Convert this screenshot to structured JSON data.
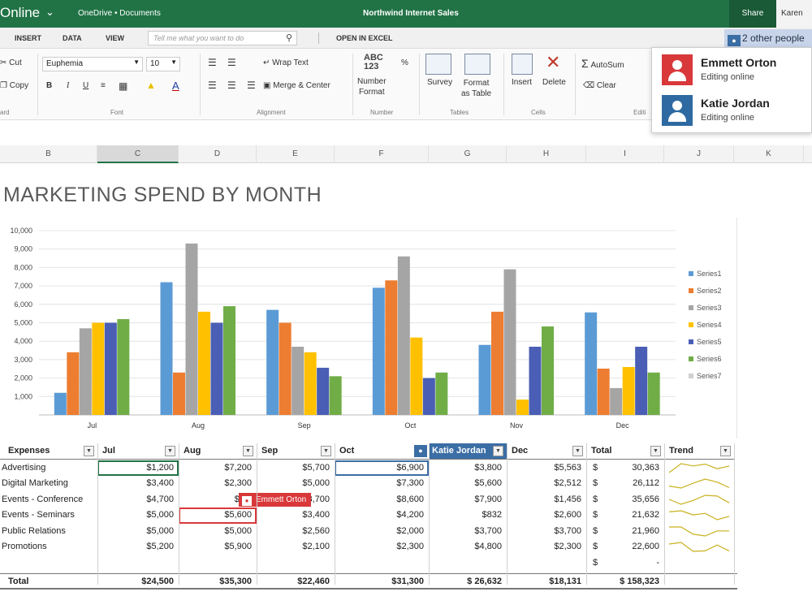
{
  "titlebar": {
    "app": "Online",
    "breadcrumb": "OneDrive • Documents",
    "document": "Northwind Internet Sales",
    "share": "Share",
    "user": "Karen"
  },
  "tabs": [
    "INSERT",
    "DATA",
    "VIEW"
  ],
  "tell_me_placeholder": "Tell me what you want to do",
  "open_in_excel": "OPEN IN EXCEL",
  "other_people": "2 other people",
  "ribbon": {
    "cut": "Cut",
    "copy": "Copy",
    "clipboard_group": "ard",
    "font_name": "Euphemia",
    "font_size": "10",
    "font_group": "Font",
    "wrap_text": "Wrap Text",
    "merge_center": "Merge & Center",
    "alignment_group": "Alignment",
    "number_format_glyph": "ABC\n123",
    "number_format": "Number\nFormat",
    "number_group": "Number",
    "survey": "Survey",
    "format_as_table": "Format\nas Table",
    "tables_group": "Tables",
    "insert": "Insert",
    "delete": "Delete",
    "cells_group": "Cells",
    "autosum": "AutoSum",
    "clear": "Clear",
    "editing_group": "Editi"
  },
  "collaborators": [
    {
      "name": "Emmett Orton",
      "status": "Editing online",
      "color": "#d9383a"
    },
    {
      "name": "Katie Jordan",
      "status": "Editing online",
      "color": "#2e6aa1"
    }
  ],
  "column_headers": [
    "B",
    "C",
    "D",
    "E",
    "F",
    "G",
    "H",
    "I",
    "J",
    "K"
  ],
  "selected_column": "C",
  "sheet_title": "MARKETING SPEND BY MONTH",
  "chart_data": {
    "type": "bar",
    "title": "",
    "categories": [
      "Jul",
      "Aug",
      "Sep",
      "Oct",
      "Nov",
      "Dec"
    ],
    "ylim": [
      0,
      10000
    ],
    "yticks": [
      "10,000",
      "9,000",
      "8,000",
      "7,000",
      "6,000",
      "5,000",
      "4,000",
      "3,000",
      "2,000",
      "1,000"
    ],
    "grid": true,
    "legend_position": "right",
    "series": [
      {
        "name": "Series1",
        "color": "#5b9bd5",
        "values": [
          1200,
          7200,
          5700,
          6900,
          3800,
          5563
        ]
      },
      {
        "name": "Series2",
        "color": "#ed7d31",
        "values": [
          3400,
          2300,
          5000,
          7300,
          5600,
          2512
        ]
      },
      {
        "name": "Series3",
        "color": "#a5a5a5",
        "values": [
          4700,
          9300,
          3700,
          8600,
          7900,
          1456
        ]
      },
      {
        "name": "Series4",
        "color": "#ffc000",
        "values": [
          5000,
          5600,
          3400,
          4200,
          832,
          2600
        ]
      },
      {
        "name": "Series5",
        "color": "#4a5eb5",
        "values": [
          5000,
          5000,
          2560,
          2000,
          3700,
          3700
        ]
      },
      {
        "name": "Series6",
        "color": "#70ad47",
        "values": [
          5200,
          5900,
          2100,
          2300,
          4800,
          2300
        ]
      },
      {
        "name": "Series7",
        "color": "#d0d0d0",
        "values": [
          0,
          0,
          0,
          0,
          0,
          0
        ]
      }
    ]
  },
  "table": {
    "headers": [
      "Expenses",
      "Jul",
      "Aug",
      "Sep",
      "Oct",
      "Katie Jordan",
      "Dec",
      "Total",
      "Trend"
    ],
    "rows": [
      {
        "label": "Advertising",
        "cells": [
          "$1,200",
          "$7,200",
          "$5,700",
          "$6,900",
          "$3,800",
          "$5,563"
        ],
        "total_cur": "$",
        "total": "30,363"
      },
      {
        "label": "Digital Marketing",
        "cells": [
          "$3,400",
          "$2,300",
          "$5,000",
          "$7,300",
          "$5,600",
          "$2,512"
        ],
        "total_cur": "$",
        "total": "26,112"
      },
      {
        "label": "Events - Conference",
        "cells": [
          "$4,700",
          "$9,3",
          "$3,700",
          "$8,600",
          "$7,900",
          "$1,456"
        ],
        "total_cur": "$",
        "total": "35,656"
      },
      {
        "label": "Events - Seminars",
        "cells": [
          "$5,000",
          "$5,600",
          "$3,400",
          "$4,200",
          "$832",
          "$2,600"
        ],
        "total_cur": "$",
        "total": "21,632"
      },
      {
        "label": "Public Relations",
        "cells": [
          "$5,000",
          "$5,000",
          "$2,560",
          "$2,000",
          "$3,700",
          "$3,700"
        ],
        "total_cur": "$",
        "total": "21,960"
      },
      {
        "label": "Promotions",
        "cells": [
          "$5,200",
          "$5,900",
          "$2,100",
          "$2,300",
          "$4,800",
          "$2,300"
        ],
        "total_cur": "$",
        "total": "22,600"
      },
      {
        "label": "",
        "cells": [
          "",
          "",
          "",
          "",
          "",
          ""
        ],
        "total_cur": "$",
        "total": "-"
      }
    ],
    "total_row": {
      "label": "Total",
      "cells": [
        "$24,500",
        "$35,300",
        "$22,460",
        "$31,300",
        "$ 26,632",
        "$18,131"
      ],
      "total": "$ 158,323"
    },
    "emmett_tag": "Emmett Orton"
  },
  "colors": {
    "excel_green": "#217346",
    "emmett": "#d9383a",
    "katie": "#3b6ea5",
    "sparkline": "#c9b11d"
  }
}
